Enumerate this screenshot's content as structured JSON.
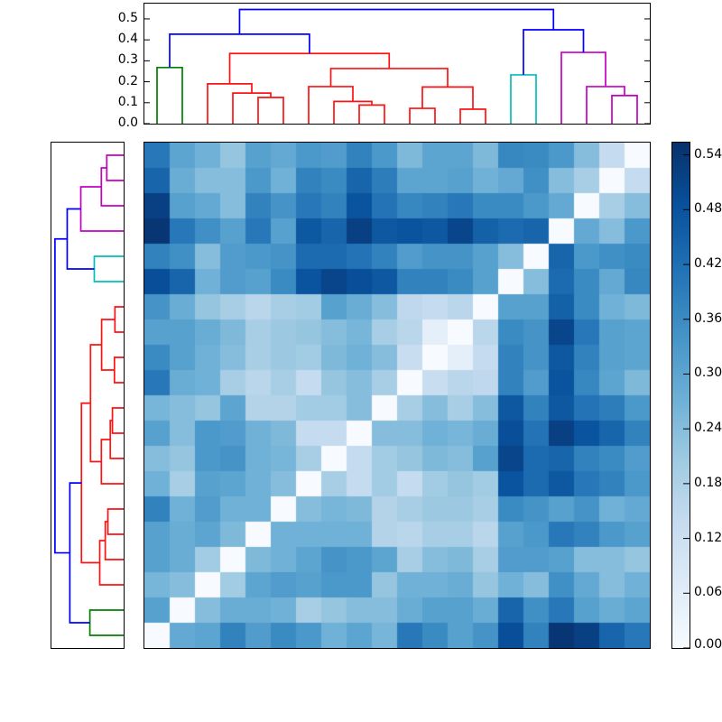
{
  "figure": {
    "kind": "clustermap",
    "background": "#ffffff",
    "frame_color": "#000000"
  },
  "chart_data": {
    "type": "heatmap",
    "title": "",
    "xlabel": "",
    "ylabel": "",
    "grid": false,
    "matrix_note": "display rows top-to-bottom correspond to dendrogram leaves 19..0, columns left-to-right to leaves 0..19; diagonal of zeros runs bottom-left to top-right",
    "matrix": [
      [
        0.4,
        0.3,
        0.27,
        0.22,
        0.31,
        0.29,
        0.33,
        0.32,
        0.38,
        0.33,
        0.25,
        0.3,
        0.3,
        0.25,
        0.37,
        0.36,
        0.33,
        0.24,
        0.14,
        0.0
      ],
      [
        0.44,
        0.28,
        0.24,
        0.24,
        0.33,
        0.27,
        0.38,
        0.36,
        0.44,
        0.39,
        0.3,
        0.3,
        0.31,
        0.27,
        0.29,
        0.35,
        0.24,
        0.19,
        0.0,
        0.14
      ],
      [
        0.52,
        0.31,
        0.29,
        0.24,
        0.38,
        0.34,
        0.4,
        0.38,
        0.48,
        0.41,
        0.37,
        0.38,
        0.4,
        0.36,
        0.36,
        0.33,
        0.29,
        0.0,
        0.19,
        0.24
      ],
      [
        0.54,
        0.4,
        0.35,
        0.31,
        0.4,
        0.31,
        0.47,
        0.44,
        0.52,
        0.47,
        0.48,
        0.47,
        0.51,
        0.45,
        0.43,
        0.44,
        0.0,
        0.29,
        0.24,
        0.33
      ],
      [
        0.38,
        0.35,
        0.24,
        0.32,
        0.33,
        0.34,
        0.43,
        0.43,
        0.41,
        0.38,
        0.32,
        0.34,
        0.34,
        0.31,
        0.24,
        0.0,
        0.44,
        0.33,
        0.35,
        0.36
      ],
      [
        0.49,
        0.44,
        0.27,
        0.32,
        0.31,
        0.36,
        0.48,
        0.51,
        0.49,
        0.47,
        0.38,
        0.38,
        0.36,
        0.31,
        0.0,
        0.24,
        0.43,
        0.36,
        0.29,
        0.37
      ],
      [
        0.34,
        0.28,
        0.22,
        0.19,
        0.16,
        0.19,
        0.2,
        0.31,
        0.28,
        0.24,
        0.15,
        0.14,
        0.16,
        0.0,
        0.31,
        0.31,
        0.45,
        0.36,
        0.27,
        0.25
      ],
      [
        0.31,
        0.31,
        0.28,
        0.25,
        0.19,
        0.21,
        0.22,
        0.24,
        0.26,
        0.19,
        0.16,
        0.05,
        0.0,
        0.16,
        0.36,
        0.34,
        0.51,
        0.4,
        0.31,
        0.3
      ],
      [
        0.36,
        0.31,
        0.27,
        0.24,
        0.19,
        0.21,
        0.2,
        0.25,
        0.27,
        0.24,
        0.13,
        0.0,
        0.05,
        0.14,
        0.38,
        0.34,
        0.47,
        0.38,
        0.31,
        0.3
      ],
      [
        0.4,
        0.28,
        0.27,
        0.19,
        0.16,
        0.19,
        0.14,
        0.22,
        0.24,
        0.19,
        0.0,
        0.13,
        0.16,
        0.15,
        0.38,
        0.32,
        0.48,
        0.37,
        0.3,
        0.25
      ],
      [
        0.26,
        0.24,
        0.22,
        0.3,
        0.17,
        0.17,
        0.2,
        0.2,
        0.24,
        0.0,
        0.19,
        0.24,
        0.19,
        0.24,
        0.47,
        0.38,
        0.47,
        0.41,
        0.39,
        0.33
      ],
      [
        0.31,
        0.24,
        0.33,
        0.32,
        0.27,
        0.25,
        0.14,
        0.14,
        0.0,
        0.24,
        0.24,
        0.27,
        0.26,
        0.28,
        0.49,
        0.41,
        0.52,
        0.48,
        0.44,
        0.38
      ],
      [
        0.24,
        0.22,
        0.33,
        0.34,
        0.27,
        0.26,
        0.19,
        0.0,
        0.14,
        0.2,
        0.22,
        0.25,
        0.24,
        0.31,
        0.51,
        0.43,
        0.44,
        0.38,
        0.36,
        0.32
      ],
      [
        0.27,
        0.19,
        0.31,
        0.3,
        0.27,
        0.24,
        0.0,
        0.19,
        0.14,
        0.2,
        0.14,
        0.2,
        0.22,
        0.2,
        0.48,
        0.43,
        0.47,
        0.4,
        0.38,
        0.33
      ],
      [
        0.38,
        0.27,
        0.32,
        0.27,
        0.27,
        0.0,
        0.24,
        0.26,
        0.25,
        0.17,
        0.19,
        0.21,
        0.21,
        0.19,
        0.36,
        0.34,
        0.31,
        0.34,
        0.27,
        0.29
      ],
      [
        0.31,
        0.28,
        0.3,
        0.25,
        0.0,
        0.27,
        0.27,
        0.27,
        0.27,
        0.17,
        0.16,
        0.19,
        0.19,
        0.16,
        0.31,
        0.33,
        0.4,
        0.38,
        0.33,
        0.31
      ],
      [
        0.31,
        0.28,
        0.2,
        0.0,
        0.25,
        0.27,
        0.3,
        0.34,
        0.33,
        0.3,
        0.19,
        0.24,
        0.25,
        0.19,
        0.32,
        0.32,
        0.31,
        0.24,
        0.24,
        0.22
      ],
      [
        0.26,
        0.24,
        0.0,
        0.2,
        0.3,
        0.32,
        0.31,
        0.33,
        0.33,
        0.22,
        0.27,
        0.27,
        0.28,
        0.22,
        0.27,
        0.24,
        0.35,
        0.29,
        0.24,
        0.27
      ],
      [
        0.31,
        0.0,
        0.24,
        0.28,
        0.28,
        0.27,
        0.19,
        0.22,
        0.24,
        0.24,
        0.28,
        0.31,
        0.31,
        0.28,
        0.44,
        0.35,
        0.4,
        0.31,
        0.28,
        0.3
      ],
      [
        0.0,
        0.29,
        0.3,
        0.38,
        0.32,
        0.36,
        0.33,
        0.27,
        0.3,
        0.26,
        0.4,
        0.36,
        0.31,
        0.34,
        0.49,
        0.38,
        0.54,
        0.52,
        0.44,
        0.4
      ]
    ],
    "vmin": 0.0,
    "vmax": 0.5535,
    "colormap": {
      "name": "Blues",
      "anchors": [
        [
          247,
          251,
          255
        ],
        [
          222,
          235,
          247
        ],
        [
          198,
          219,
          239
        ],
        [
          158,
          202,
          225
        ],
        [
          107,
          174,
          214
        ],
        [
          66,
          146,
          198
        ],
        [
          33,
          113,
          181
        ],
        [
          8,
          81,
          156
        ],
        [
          8,
          48,
          107
        ]
      ]
    },
    "colorbar": {
      "tick_labels": [
        "0.00",
        "0.06",
        "0.12",
        "0.18",
        "0.24",
        "0.30",
        "0.36",
        "0.42",
        "0.48",
        "0.54"
      ],
      "tick_values": [
        0.0,
        0.06,
        0.12,
        0.18,
        0.24,
        0.3,
        0.36,
        0.42,
        0.48,
        0.54
      ],
      "position": "right"
    },
    "top_dendrogram": {
      "axis_max": 0.573,
      "tick_labels": [
        "0.0",
        "0.1",
        "0.2",
        "0.3",
        "0.4",
        "0.5"
      ],
      "tick_values": [
        0.0,
        0.1,
        0.2,
        0.3,
        0.4,
        0.5
      ],
      "n_leaves": 20,
      "line_width": 1.7,
      "link_colors": {
        "green": "#008000",
        "red": "#ff1212",
        "cyan": "#00bfbf",
        "magenta": "#c400c4",
        "blue": "#0000ff"
      },
      "merges": [
        [
          0.5,
          0,
          1.5,
          0,
          0.268,
          "green"
        ],
        [
          4.5,
          0,
          5.5,
          0,
          0.125,
          "red"
        ],
        [
          3.5,
          0,
          5.0,
          0.125,
          0.146,
          "red"
        ],
        [
          2.5,
          0,
          4.25,
          0.146,
          0.19,
          "red"
        ],
        [
          8.5,
          0,
          9.5,
          0,
          0.089,
          "red"
        ],
        [
          7.5,
          0,
          9.0,
          0.089,
          0.106,
          "red"
        ],
        [
          6.5,
          0,
          8.25,
          0.106,
          0.177,
          "red"
        ],
        [
          10.5,
          0,
          11.5,
          0,
          0.073,
          "red"
        ],
        [
          12.5,
          0,
          13.5,
          0,
          0.069,
          "red"
        ],
        [
          11.0,
          0.073,
          13.0,
          0.069,
          0.175,
          "red"
        ],
        [
          7.375,
          0.177,
          12.0,
          0.175,
          0.263,
          "red"
        ],
        [
          3.375,
          0.19,
          9.6875,
          0.263,
          0.335,
          "red"
        ],
        [
          14.5,
          0,
          15.5,
          0,
          0.233,
          "cyan"
        ],
        [
          18.5,
          0,
          19.5,
          0,
          0.134,
          "magenta"
        ],
        [
          17.5,
          0,
          19.0,
          0.134,
          0.177,
          "magenta"
        ],
        [
          16.5,
          0,
          18.25,
          0.177,
          0.34,
          "magenta"
        ],
        [
          15.0,
          0.233,
          17.375,
          0.34,
          0.448,
          "blue"
        ],
        [
          1.0,
          0.268,
          6.53125,
          0.335,
          0.427,
          "blue"
        ],
        [
          3.765625,
          0.427,
          16.1875,
          0.448,
          0.545,
          "blue"
        ]
      ]
    },
    "left_dendrogram": {
      "orientation": "left",
      "note": "same tree as top dendrogram, leaves ordered 19..0 top-to-bottom, distance increases leftward, no tick labels"
    }
  }
}
